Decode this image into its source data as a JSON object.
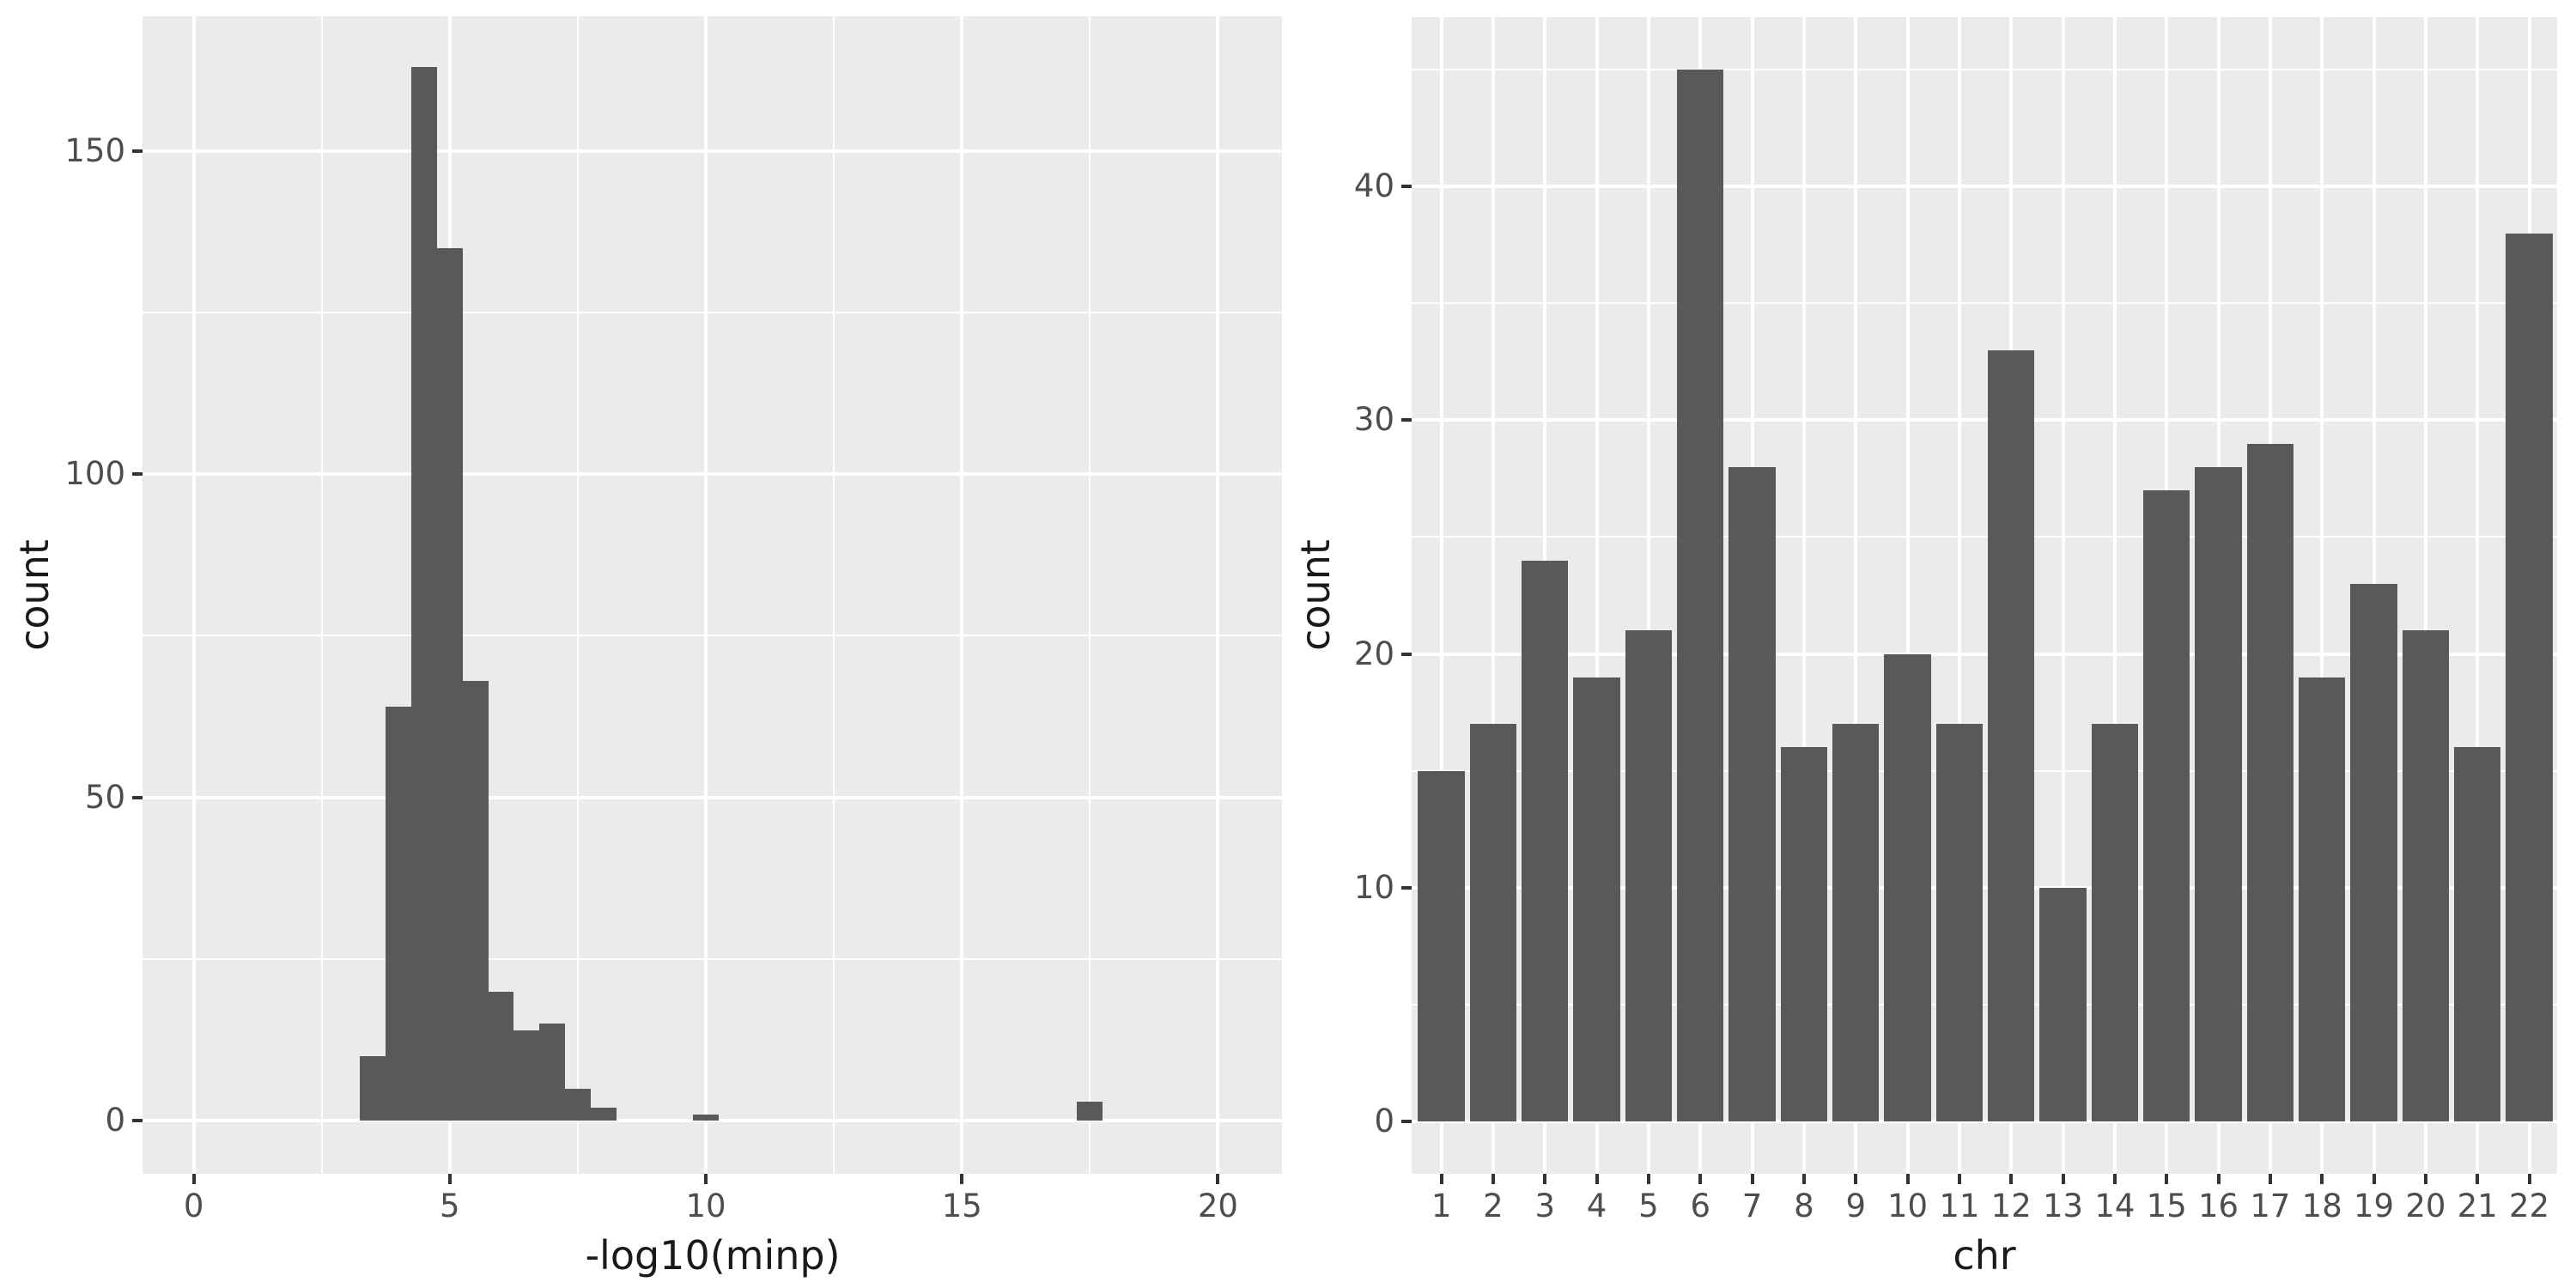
{
  "figure": {
    "background": "#ffffff"
  },
  "styles": {
    "bar_fill": "#595959",
    "panel_bg": "#ebebeb",
    "grid_major_color": "#ffffff",
    "grid_minor_color": "#ffffff",
    "tick_color": "#333333",
    "tick_label_color": "#4d4d4d",
    "axis_title_color": "#1a1a1a"
  },
  "chart_data": [
    {
      "type": "bar",
      "subtype": "histogram",
      "title": "",
      "xlabel": "-log10(minp)",
      "ylabel": "count",
      "bin_width": 0.5,
      "bins": [
        {
          "center": 3.5,
          "count": 10
        },
        {
          "center": 4.0,
          "count": 64
        },
        {
          "center": 4.5,
          "count": 163
        },
        {
          "center": 5.0,
          "count": 135
        },
        {
          "center": 5.5,
          "count": 68
        },
        {
          "center": 6.0,
          "count": 20
        },
        {
          "center": 6.5,
          "count": 14
        },
        {
          "center": 7.0,
          "count": 15
        },
        {
          "center": 7.5,
          "count": 5
        },
        {
          "center": 8.0,
          "count": 2
        },
        {
          "center": 10.0,
          "count": 1
        },
        {
          "center": 17.5,
          "count": 3
        }
      ],
      "x_ticks": [
        0,
        5,
        10,
        15,
        20
      ],
      "x_minor": [
        2.5,
        7.5,
        12.5,
        17.5
      ],
      "y_ticks": [
        0,
        50,
        100,
        150
      ],
      "y_minor": [
        25,
        75,
        125
      ],
      "x_range": [
        -1.0,
        21.25
      ],
      "y_range": [
        -8.2,
        170.8
      ],
      "grid": "on",
      "legend": "none"
    },
    {
      "type": "bar",
      "title": "",
      "xlabel": "chr",
      "ylabel": "count",
      "categories": [
        "1",
        "2",
        "3",
        "4",
        "5",
        "6",
        "7",
        "8",
        "9",
        "10",
        "11",
        "12",
        "13",
        "14",
        "15",
        "16",
        "17",
        "18",
        "19",
        "20",
        "21",
        "22"
      ],
      "values": [
        15,
        17,
        24,
        19,
        21,
        45,
        28,
        16,
        17,
        20,
        17,
        33,
        10,
        17,
        27,
        28,
        29,
        19,
        23,
        21,
        16,
        38
      ],
      "y_ticks": [
        0,
        10,
        20,
        30,
        40
      ],
      "y_minor": [
        5,
        15,
        25,
        35,
        45
      ],
      "y_range": [
        -2.25,
        47.25
      ],
      "grid": "on",
      "legend": "none"
    }
  ]
}
